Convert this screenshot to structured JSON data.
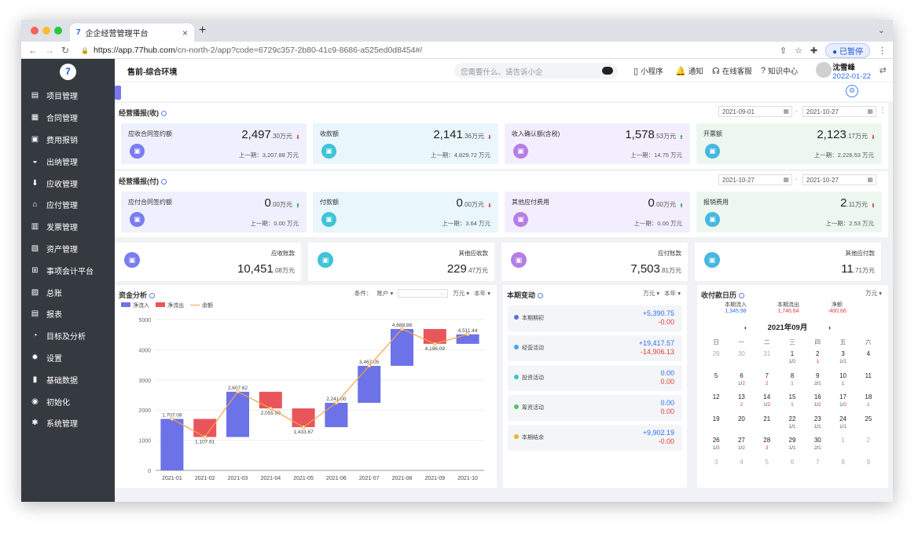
{
  "browser": {
    "tab_title": "企企经营管理平台",
    "url_host": "https://app.77hub.com",
    "url_path": "/cn-north-2/app?code=6729c357-2b80-41c9-8686-a525ed0d8454#/",
    "paused_label": "已暂停"
  },
  "sidebar": {
    "logo": "7",
    "items": [
      {
        "label": "项目管理",
        "icon": "folder-icon"
      },
      {
        "label": "合同管理",
        "icon": "contract-icon"
      },
      {
        "label": "费用报销",
        "icon": "expense-icon"
      },
      {
        "label": "出纳管理",
        "icon": "cashier-icon"
      },
      {
        "label": "应收管理",
        "icon": "receivable-icon"
      },
      {
        "label": "应付管理",
        "icon": "payable-icon"
      },
      {
        "label": "发票管理",
        "icon": "invoice-icon"
      },
      {
        "label": "资产管理",
        "icon": "asset-icon"
      },
      {
        "label": "事项会计平台",
        "icon": "grid-icon"
      },
      {
        "label": "总账",
        "icon": "ledger-icon"
      },
      {
        "label": "报表",
        "icon": "report-icon"
      },
      {
        "label": "目标及分析",
        "icon": "target-icon"
      },
      {
        "label": "设置",
        "icon": "gear-icon"
      },
      {
        "label": "基础数据",
        "icon": "bars-icon"
      },
      {
        "label": "初始化",
        "icon": "init-icon"
      },
      {
        "label": "系统管理",
        "icon": "system-icon"
      }
    ]
  },
  "topbar": {
    "env": "售前-综合环境",
    "search_placeholder": "您需要什么、请告诉小企",
    "mini_program": "小程序",
    "notify": "通知",
    "service": "在线客服",
    "knowledge": "知识中心",
    "user_name": "沈雪峰",
    "user_date": "2022-01-22"
  },
  "income": {
    "title": "经营播报(收)",
    "date_from": "2021-09-01",
    "date_to": "2021-10-27",
    "cards": [
      {
        "label": "应收合同签约额",
        "int": "2,497",
        "dec": ".30",
        "unit": "万元",
        "prev": "上一期：3,207.88 万元",
        "color": "#eef0fd",
        "icon_color": "#7b7cf0",
        "trend": "up"
      },
      {
        "label": "收款额",
        "int": "2,141",
        "dec": ".36",
        "unit": "万元",
        "prev": "上一期：4,829.72 万元",
        "color": "#e9f6fb",
        "icon_color": "#3fc3d8",
        "trend": "up"
      },
      {
        "label": "收入确认额(含税)",
        "int": "1,578",
        "dec": ".53",
        "unit": "万元",
        "prev": "上一期：14.75 万元",
        "color": "#f3eefd",
        "icon_color": "#b57ee6",
        "trend": "down"
      },
      {
        "label": "开票额",
        "int": "2,123",
        "dec": ".17",
        "unit": "万元",
        "prev": "上一期：2,226.53 万元",
        "color": "#ecf8ef",
        "icon_color": "#45b7e0",
        "trend": "up"
      }
    ]
  },
  "payment": {
    "title": "经营播报(付)",
    "date_from": "2021-10-27",
    "date_to": "2021-10-27",
    "cards": [
      {
        "label": "应付合同签约额",
        "int": "0",
        "dec": ".00",
        "unit": "万元",
        "prev": "上一期：0.00 万元",
        "color": "#eef0fd",
        "icon_color": "#7b7cf0",
        "trend": "down"
      },
      {
        "label": "付款额",
        "int": "0",
        "dec": ".00",
        "unit": "万元",
        "prev": "上一期：3.64 万元",
        "color": "#e9f6fb",
        "icon_color": "#3fc3d8",
        "trend": "up"
      },
      {
        "label": "其他应付费用",
        "int": "0",
        "dec": ".00",
        "unit": "万元",
        "prev": "上一期：0.00 万元",
        "color": "#f3eefd",
        "icon_color": "#b57ee6",
        "trend": "down"
      },
      {
        "label": "报销费用",
        "int": "2",
        "dec": ".11",
        "unit": "万元",
        "prev": "上一期：2.53 万元",
        "color": "#ecf8ef",
        "icon_color": "#45b7e0",
        "trend": "up"
      }
    ]
  },
  "balances": [
    {
      "label": "应收账款",
      "int": "10,451",
      "dec": ".08",
      "unit": "万元",
      "icon_color": "#7b7cf0"
    },
    {
      "label": "其他应收款",
      "int": "229",
      "dec": ".47",
      "unit": "万元",
      "icon_color": "#3fc3d8"
    },
    {
      "label": "应付账款",
      "int": "7,503",
      "dec": ".81",
      "unit": "万元",
      "icon_color": "#b57ee6"
    },
    {
      "label": "其他应付款",
      "int": "11",
      "dec": ".71",
      "unit": "万元",
      "icon_color": "#45b7e0"
    }
  ],
  "fund_analysis": {
    "title": "资金分析",
    "filter_label": "条件：",
    "filter_account": "账户 ▾",
    "filter_input": "...",
    "unit_select": "万元 ▾",
    "period_select": "本年 ▾"
  },
  "chart_data": {
    "type": "bar",
    "legend": [
      "净流入",
      "净流出",
      "余额"
    ],
    "colors": {
      "inflow": "#6c72e8",
      "outflow": "#e8565c",
      "balance": "#f5a442"
    },
    "categories": [
      "2021-01",
      "2021-02",
      "2021-03",
      "2021-04",
      "2021-05",
      "2021-06",
      "2021-07",
      "2021-08",
      "2021-09",
      "2021-10"
    ],
    "bars": [
      {
        "from": 0,
        "to": 1707.08,
        "kind": "in"
      },
      {
        "from": 1707.08,
        "to": 1107.61,
        "kind": "out"
      },
      {
        "from": 1107.61,
        "to": 2607.62,
        "kind": "in"
      },
      {
        "from": 2607.62,
        "to": 2055.5,
        "kind": "out"
      },
      {
        "from": 2055.5,
        "to": 1433.67,
        "kind": "out"
      },
      {
        "from": 1433.67,
        "to": 2241.0,
        "kind": "in"
      },
      {
        "from": 2241.0,
        "to": 3467.05,
        "kind": "in"
      },
      {
        "from": 3467.05,
        "to": 4688.88,
        "kind": "in"
      },
      {
        "from": 4688.88,
        "to": 4196.09,
        "kind": "out"
      },
      {
        "from": 4196.09,
        "to": 4511.44,
        "kind": "in"
      }
    ],
    "balance": [
      1707.08,
      1107.61,
      2607.62,
      2055.5,
      1433.67,
      2241.0,
      3467.05,
      4688.88,
      4196.09,
      4511.44
    ],
    "labels": [
      "1,707.08",
      "1,107.61",
      "2,607.62",
      "2,055.50",
      "1,433.67",
      "2,241.00",
      "3,467.05",
      "4,688.88",
      "4,196.09",
      "4,511.44"
    ],
    "yticks": [
      0,
      1000,
      2000,
      3000,
      4000,
      5000
    ],
    "ylim": [
      0,
      5000
    ]
  },
  "period_change": {
    "title": "本期变动",
    "unit_select": "万元 ▾",
    "period_select": "本年 ▾",
    "rows": [
      {
        "name": "本期期初",
        "a": "+5,390.75",
        "b": "-0.00",
        "dot": "#5b6ee8"
      },
      {
        "name": "经营活动",
        "a": "+19,417.57",
        "b": "-14,906.13",
        "dot": "#3fa8e8"
      },
      {
        "name": "投资活动",
        "a": "0.00",
        "b": "0.00",
        "dot": "#3fc6c2"
      },
      {
        "name": "筹资活动",
        "a": "0.00",
        "b": "0.00",
        "dot": "#59c26a"
      },
      {
        "name": "本期结余",
        "a": "+9,902.19",
        "b": "-0.00",
        "dot": "#f0b035"
      }
    ]
  },
  "calendar": {
    "title": "收付款日历",
    "unit_select": "万元 ▾",
    "summary": [
      {
        "label": "本期流入",
        "value": "1,345.98",
        "cls": "a"
      },
      {
        "label": "本期流出",
        "value": "1,746.64",
        "cls": "b"
      },
      {
        "label": "净额",
        "value": "-400.66",
        "cls": "b"
      }
    ],
    "month": "2021年09月",
    "prev": "‹",
    "next": "›",
    "weekdays": [
      "日",
      "一",
      "二",
      "三",
      "四",
      "五",
      "六"
    ],
    "weeks": [
      [
        {
          "d": "29",
          "g": true
        },
        {
          "d": "30",
          "g": true
        },
        {
          "d": "31",
          "g": true
        },
        {
          "d": "1",
          "p": "1",
          "q": "2"
        },
        {
          "d": "2",
          "q": "1"
        },
        {
          "d": "3",
          "p": "1",
          "q": "1"
        },
        {
          "d": "4"
        }
      ],
      [
        {
          "d": "5"
        },
        {
          "d": "6",
          "p": "1",
          "q": "2"
        },
        {
          "d": "7",
          "q": "2"
        },
        {
          "d": "8",
          "q": "1"
        },
        {
          "d": "9",
          "p": "2",
          "q": "1"
        },
        {
          "d": "10",
          "q": "1"
        },
        {
          "d": "11"
        }
      ],
      [
        {
          "d": "12"
        },
        {
          "d": "13",
          "q": "2"
        },
        {
          "d": "14",
          "p": "1",
          "q": "2"
        },
        {
          "d": "15",
          "q": "1"
        },
        {
          "d": "16",
          "p": "1",
          "q": "2"
        },
        {
          "d": "17",
          "p": "1",
          "q": "2"
        },
        {
          "d": "18",
          "q": "1"
        }
      ],
      [
        {
          "d": "19"
        },
        {
          "d": "20"
        },
        {
          "d": "21"
        },
        {
          "d": "22",
          "p": "1",
          "q": "1"
        },
        {
          "d": "23",
          "p": "1",
          "q": "1"
        },
        {
          "d": "24",
          "p": "1",
          "q": "1"
        },
        {
          "d": "25"
        }
      ],
      [
        {
          "d": "26",
          "p": "1",
          "q": "3"
        },
        {
          "d": "27",
          "p": "1",
          "q": "2"
        },
        {
          "d": "28",
          "q": "3"
        },
        {
          "d": "29",
          "p": "1",
          "q": "1"
        },
        {
          "d": "30",
          "p": "2",
          "q": "1"
        },
        {
          "d": "1",
          "g": true
        },
        {
          "d": "2",
          "g": true
        }
      ],
      [
        {
          "d": "3",
          "g": true
        },
        {
          "d": "4",
          "g": true
        },
        {
          "d": "5",
          "g": true
        },
        {
          "d": "6",
          "g": true
        },
        {
          "d": "7",
          "g": true
        },
        {
          "d": "8",
          "g": true
        },
        {
          "d": "9",
          "g": true
        }
      ]
    ]
  }
}
